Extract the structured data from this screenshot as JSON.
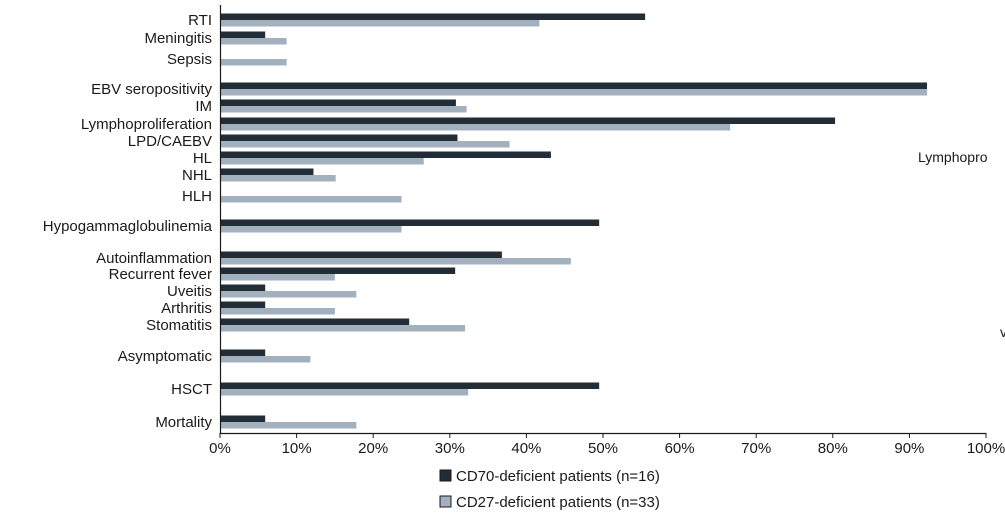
{
  "chart_data": {
    "type": "bar",
    "orientation": "horizontal",
    "title": "",
    "xlabel": "",
    "ylabel": "",
    "categories": [
      "RTI",
      "Meningitis",
      "Sepsis",
      "EBV seropositivity",
      "IM",
      "Lymphoproliferation",
      "LPD/CAEBV",
      "HL",
      "NHL",
      "HLH",
      "Hypogammaglobulinemia",
      "Autoinflammation",
      "Recurrent fever",
      "Uveitis",
      "Arthritis",
      "Stomatitis",
      "Asymptomatic",
      "HSCT",
      "Mortality"
    ],
    "series": [
      {
        "name": "CD70-deficient patients (n=16)",
        "color": "#222d36",
        "values": [
          55.5,
          5.9,
          null,
          92.3,
          30.8,
          80.3,
          31.0,
          43.2,
          12.2,
          null,
          49.5,
          36.8,
          30.7,
          5.9,
          5.9,
          24.7,
          5.9,
          49.5,
          5.9
        ]
      },
      {
        "name": "CD27-deficient patients (n=33)",
        "color": "#a3b1bf",
        "values": [
          41.7,
          8.7,
          8.7,
          92.3,
          32.2,
          66.6,
          37.8,
          26.6,
          15.1,
          23.7,
          23.7,
          45.8,
          15.0,
          17.8,
          15.0,
          32.0,
          11.8,
          32.4,
          17.8
        ]
      }
    ],
    "xlim": [
      0,
      100
    ],
    "x_ticks": [
      "0%",
      "10%",
      "20%",
      "30%",
      "40%",
      "50%",
      "60%",
      "70%",
      "80%",
      "90%",
      "100%"
    ],
    "grid": false,
    "legend_position": "bottom"
  },
  "clipped_annotation": "Lymphopro"
}
